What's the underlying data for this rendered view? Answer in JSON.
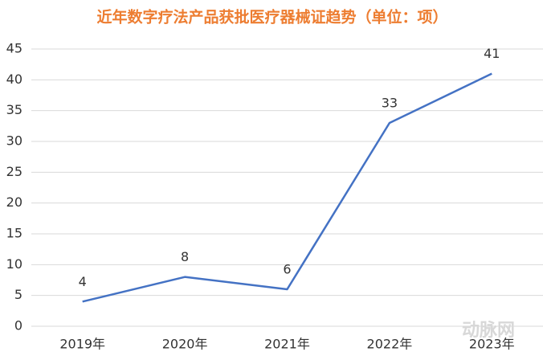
{
  "chart_data": {
    "type": "line",
    "title": "近年数字疗法产品获批医疗器械证趋势（单位：项）",
    "categories": [
      "2019年",
      "2020年",
      "2021年",
      "2022年",
      "2023年"
    ],
    "values": [
      4,
      8,
      6,
      33,
      41
    ],
    "color": "#4472c4",
    "ylim": [
      0,
      45
    ],
    "yticks": [
      0,
      5,
      10,
      15,
      20,
      25,
      30,
      35,
      40,
      45
    ],
    "grid": true,
    "watermark": "动脉网"
  }
}
